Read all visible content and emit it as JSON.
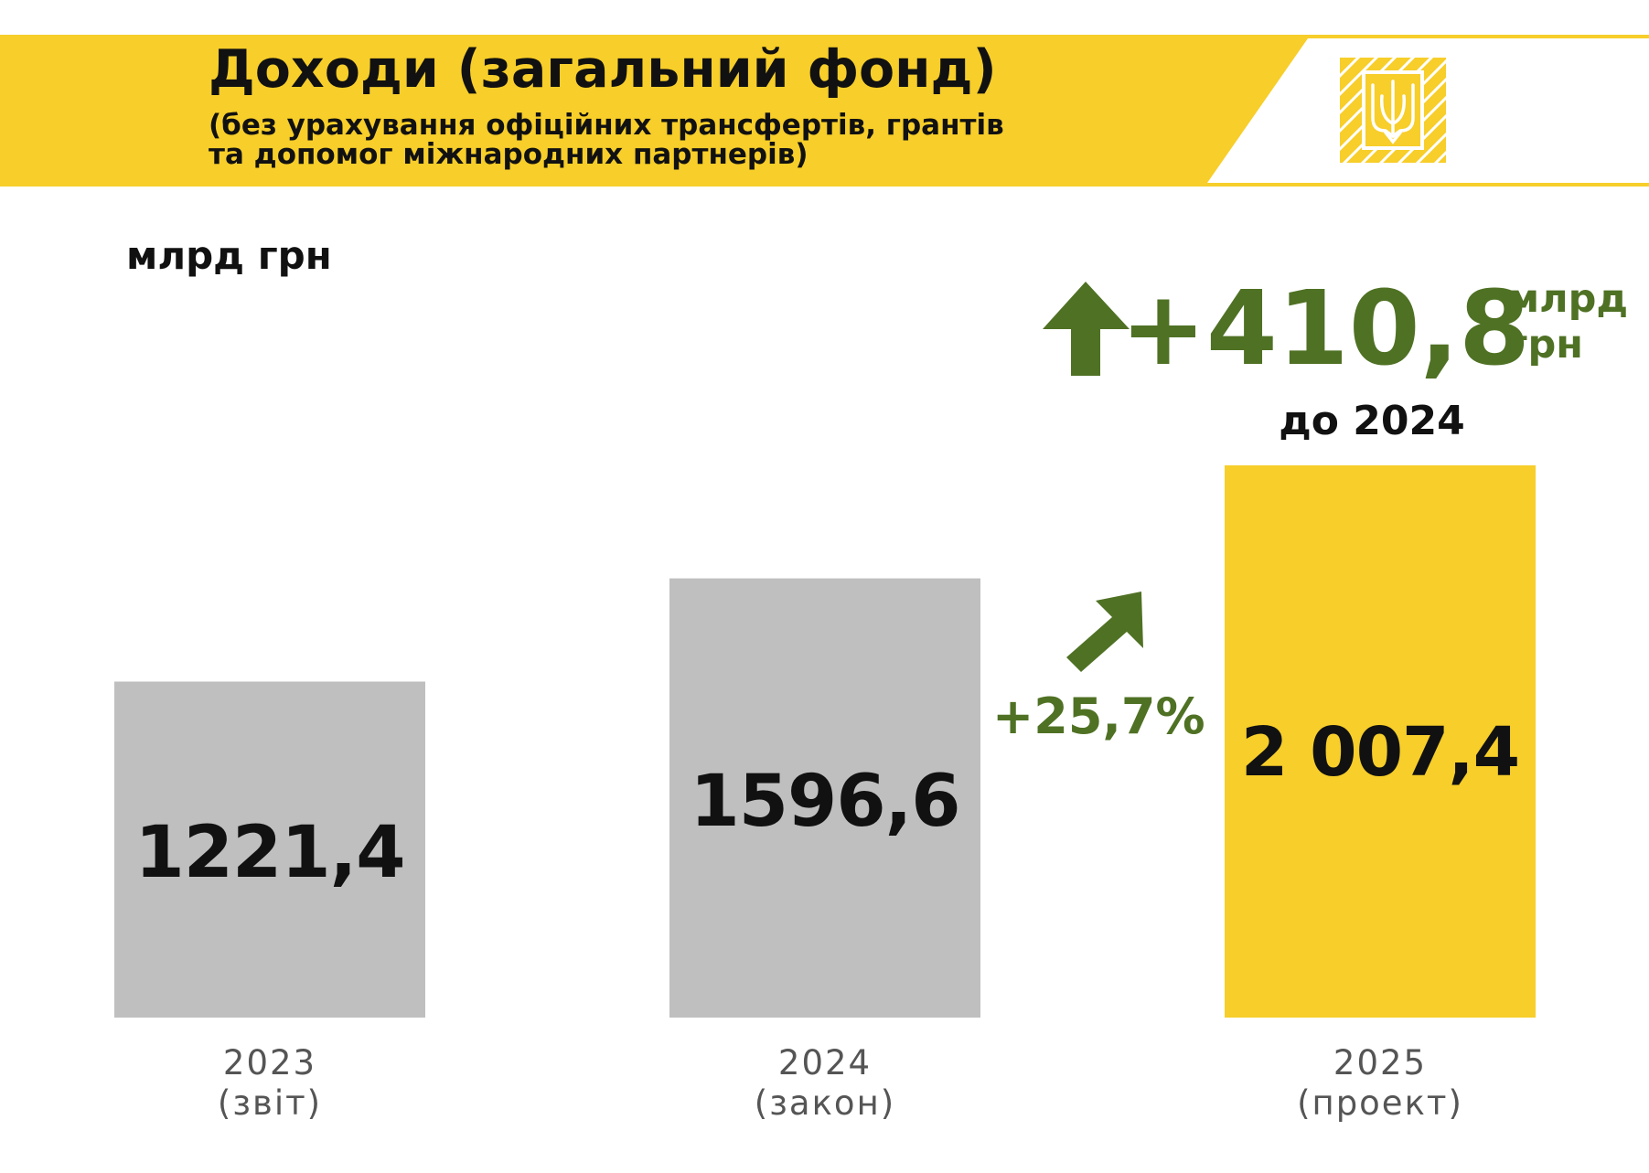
{
  "header": {
    "title": "Доходи (загальний фонд)",
    "subtitle_line1": "(без урахування офіційних трансфертів, грантів",
    "subtitle_line2": "та допомог міжнародних партнерів)",
    "emblem_icon": "tryzub-emblem-icon"
  },
  "colors": {
    "brand_yellow": "#f7ce2a",
    "bar_grey": "#bfbfbf",
    "bar_highlight": "#f7ce2a",
    "growth_green": "#4f7124",
    "text_dark": "#111111"
  },
  "annotations": {
    "increase_value": "+410,8",
    "increase_unit_line1": "млрд",
    "increase_unit_line2": "грн",
    "increase_reference": "до 2024",
    "growth_percent": "+25,7%",
    "up_arrow_icon": "up-arrow-icon",
    "diagonal_arrow_icon": "diagonal-up-arrow-icon"
  },
  "chart_data": {
    "type": "bar",
    "ylabel": "млрд грн",
    "categories": [
      "2023",
      "2024",
      "2025"
    ],
    "category_notes": [
      "(звіт)",
      "(закон)",
      "(проект)"
    ],
    "values": [
      1221.4,
      1596.6,
      2007.4
    ],
    "value_labels": [
      "1221,4",
      "1596,6",
      "2 007,4"
    ],
    "highlight_index": 2,
    "ylim": [
      0,
      2007.4
    ],
    "grid": false
  }
}
